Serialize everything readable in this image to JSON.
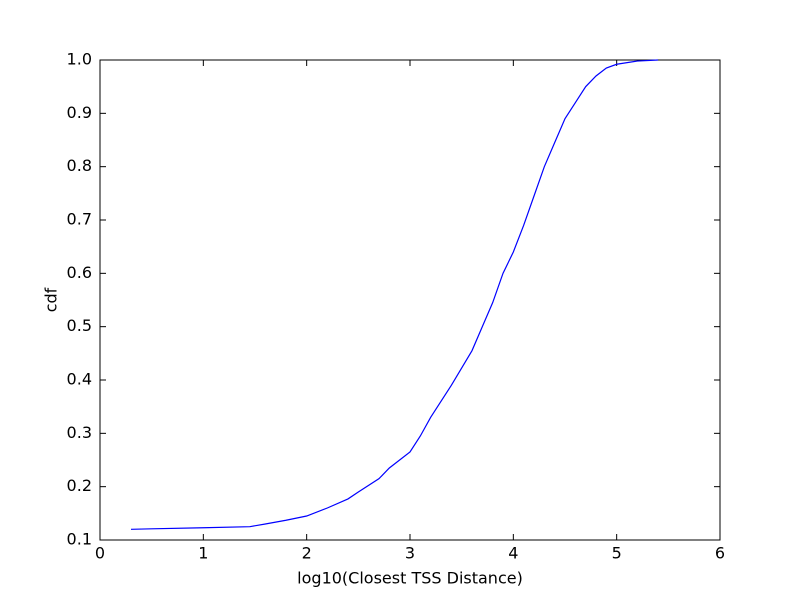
{
  "chart_data": {
    "type": "line",
    "xlabel": "log10(Closest TSS Distance)",
    "ylabel": "cdf",
    "x": [
      0.3,
      0.5,
      1.0,
      1.45,
      1.6,
      1.8,
      2.0,
      2.2,
      2.4,
      2.5,
      2.7,
      2.8,
      3.0,
      3.1,
      3.2,
      3.4,
      3.6,
      3.7,
      3.8,
      3.9,
      4.0,
      4.1,
      4.2,
      4.3,
      4.4,
      4.5,
      4.6,
      4.7,
      4.8,
      4.9,
      5.0,
      5.2,
      5.4
    ],
    "values": [
      0.12,
      0.121,
      0.123,
      0.125,
      0.13,
      0.137,
      0.145,
      0.16,
      0.177,
      0.19,
      0.215,
      0.235,
      0.265,
      0.295,
      0.33,
      0.39,
      0.455,
      0.5,
      0.545,
      0.6,
      0.64,
      0.69,
      0.745,
      0.8,
      0.845,
      0.89,
      0.92,
      0.95,
      0.97,
      0.985,
      0.992,
      0.998,
      1.0
    ],
    "color": "#0000ff",
    "xlim": [
      0,
      6
    ],
    "ylim": [
      0.1,
      1.0
    ],
    "xticks": [
      0,
      1,
      2,
      3,
      4,
      5,
      6
    ],
    "yticks": [
      0.1,
      0.2,
      0.3,
      0.4,
      0.5,
      0.6,
      0.7,
      0.8,
      0.9,
      {
        "value": 1.0,
        "label": "1.0"
      }
    ],
    "grid": false
  }
}
